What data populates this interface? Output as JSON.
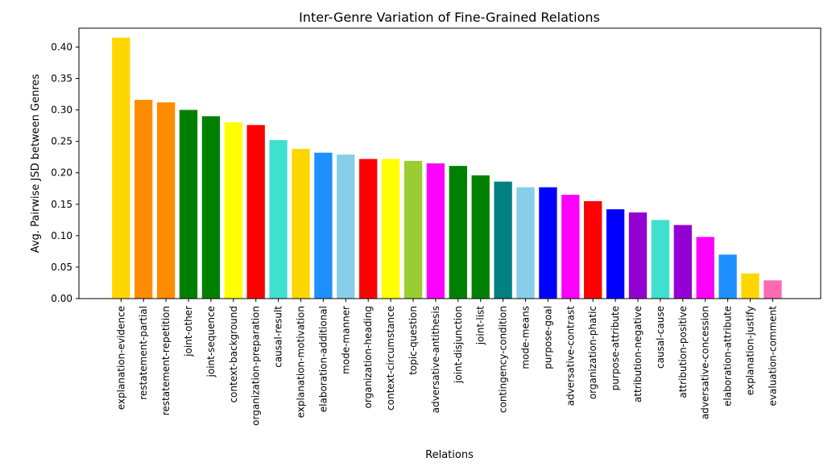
{
  "chart_data": {
    "type": "bar",
    "title": "Inter-Genre Variation of Fine-Grained Relations",
    "xlabel": "Relations",
    "ylabel": "Avg. Pairwise JSD between Genres",
    "ylim": [
      0,
      0.43
    ],
    "yticks": [
      0.0,
      0.05,
      0.1,
      0.15,
      0.2,
      0.25,
      0.3,
      0.35,
      0.4
    ],
    "ytick_labels": [
      "0.00",
      "0.05",
      "0.10",
      "0.15",
      "0.20",
      "0.25",
      "0.30",
      "0.35",
      "0.40"
    ],
    "grid": false,
    "categories": [
      "explanation-evidence",
      "restatement-partial",
      "restatement-repetition",
      "joint-other",
      "joint-sequence",
      "context-background",
      "organization-preparation",
      "causal-result",
      "explanation-motivation",
      "elaboration-additional",
      "mode-manner",
      "organization-heading",
      "context-circumstance",
      "topic-question",
      "adversative-antithesis",
      "joint-disjunction",
      "joint-list",
      "contingency-condition",
      "mode-means",
      "purpose-goal",
      "adversative-contrast",
      "organization-phatic",
      "purpose-attribute",
      "attribution-negative",
      "causal-cause",
      "attribution-positive",
      "adversative-concession",
      "elaboration-attribute",
      "explanation-justify",
      "evaluation-comment"
    ],
    "values": [
      0.415,
      0.316,
      0.312,
      0.3,
      0.29,
      0.28,
      0.276,
      0.252,
      0.238,
      0.232,
      0.229,
      0.222,
      0.222,
      0.219,
      0.215,
      0.211,
      0.196,
      0.186,
      0.177,
      0.177,
      0.165,
      0.155,
      0.142,
      0.137,
      0.125,
      0.117,
      0.098,
      0.07,
      0.04,
      0.029
    ],
    "colors": [
      "#ffd700",
      "#ff8c00",
      "#ff8c00",
      "#008000",
      "#008000",
      "#ffff00",
      "#ff0000",
      "#40e0d0",
      "#ffd700",
      "#1e90ff",
      "#87ceeb",
      "#ff0000",
      "#ffff00",
      "#9acd32",
      "#ff00ff",
      "#008000",
      "#008000",
      "#008080",
      "#87ceeb",
      "#0000ff",
      "#ff00ff",
      "#ff0000",
      "#0000ff",
      "#9400d3",
      "#40e0d0",
      "#9400d3",
      "#ff00ff",
      "#1e90ff",
      "#ffd700",
      "#ff69b4"
    ]
  }
}
